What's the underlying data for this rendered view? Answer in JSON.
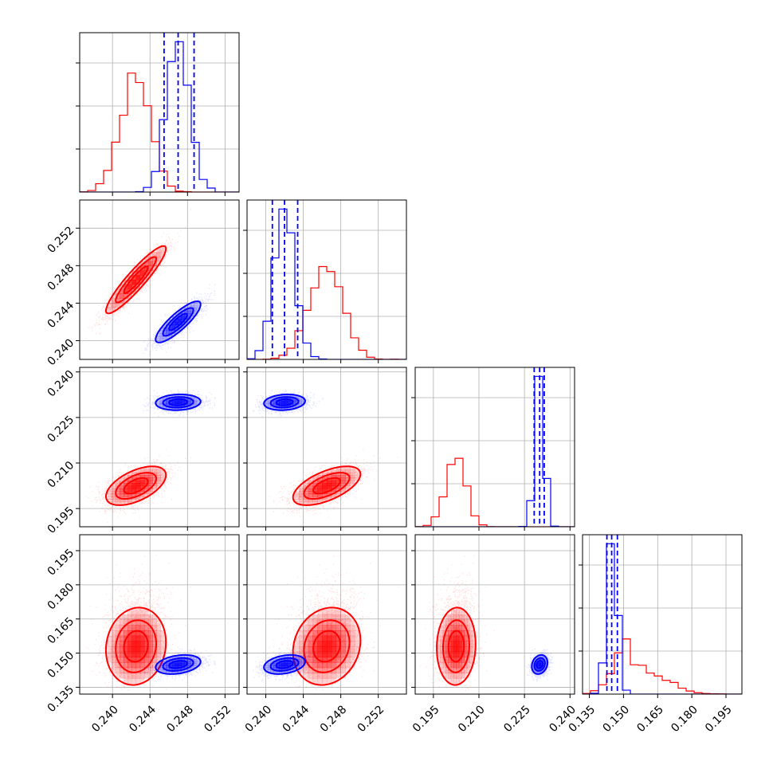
{
  "colors": {
    "red": "#ff0000",
    "blue": "#0000ff",
    "grid": "#b0b0b0",
    "axis": "#000000"
  },
  "chart_data": {
    "type": "corner",
    "grid": true,
    "parameters": [
      {
        "id": "p1",
        "range": [
          0.2365,
          0.2535
        ],
        "ticks": [
          "0.240",
          "0.244",
          "0.248",
          "0.252"
        ],
        "quantiles_blue": [
          0.2455,
          0.247,
          0.2487
        ]
      },
      {
        "id": "p2",
        "range": [
          0.238,
          0.255
        ],
        "ticks": [
          "0.240",
          "0.244",
          "0.248",
          "0.252"
        ],
        "quantiles_blue": [
          0.2407,
          0.242,
          0.2434
        ]
      },
      {
        "id": "p3",
        "range": [
          0.189,
          0.2415
        ],
        "ticks": [
          "0.195",
          "0.210",
          "0.225",
          "0.240"
        ],
        "quantiles_blue": [
          0.2282,
          0.23,
          0.2315
        ]
      },
      {
        "id": "p4",
        "range": [
          0.132,
          0.202
        ],
        "ticks": [
          "0.135",
          "0.150",
          "0.165",
          "0.180",
          "0.195"
        ],
        "quantiles_blue": [
          0.1427,
          0.1448,
          0.1473
        ]
      }
    ],
    "series": [
      {
        "color": "red",
        "means": [
          0.2425,
          0.2465,
          0.2025,
          0.153
        ],
        "sigmas": [
          0.0016,
          0.0018,
          0.0032,
          0.0085
        ],
        "skew": [
          0,
          0,
          0,
          1
        ],
        "correlations": {
          "1-0": 0.92,
          "2-0": 0.55,
          "2-1": 0.6,
          "3-0": 0.1,
          "3-1": 0.15,
          "3-2": 0.05
        }
      },
      {
        "color": "blue",
        "means": [
          0.247,
          0.242,
          0.23,
          0.145
        ],
        "sigmas": [
          0.0012,
          0.0011,
          0.0013,
          0.0021
        ],
        "skew": [
          0,
          0,
          0,
          0
        ],
        "correlations": {
          "1-0": 0.85,
          "2-0": 0.1,
          "2-1": 0.15,
          "3-0": 0.3,
          "3-1": 0.3,
          "3-2": 0.2
        }
      }
    ]
  }
}
